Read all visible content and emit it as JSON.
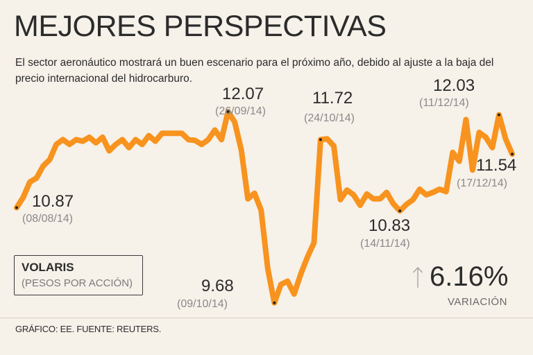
{
  "title": "MEJORES PERSPECTIVAS",
  "subtitle": "El sector aeronáutico mostrará un buen escenario para el próximo año, debido al ajuste a la baja del precio internacional del hidrocarburo.",
  "legend": {
    "name": "VOLARIS",
    "unit": "(PESOS POR ACCIÓN)"
  },
  "change": {
    "value": "6.16%",
    "label": "VARIACIÓN",
    "direction": "up"
  },
  "source": "GRÁFICO: EE. FUENTE: REUTERS.",
  "colors": {
    "line": "#f7931e",
    "text": "#2b2b2b",
    "muted": "#8a8a8a",
    "background": "#f6f1e9"
  },
  "chart_data": {
    "type": "line",
    "title": "MEJORES PERSPECTIVAS",
    "series": [
      {
        "name": "VOLARIS",
        "values": [
          10.87,
          11.0,
          11.19,
          11.24,
          11.39,
          11.47,
          11.66,
          11.72,
          11.66,
          11.72,
          11.7,
          11.75,
          11.68,
          11.75,
          11.58,
          11.66,
          11.72,
          11.62,
          11.72,
          11.66,
          11.77,
          11.7,
          11.8,
          11.8,
          11.8,
          11.8,
          11.72,
          11.71,
          11.66,
          11.72,
          11.84,
          11.72,
          12.07,
          11.94,
          11.59,
          10.98,
          11.05,
          10.84,
          10.11,
          9.68,
          9.91,
          9.95,
          9.79,
          10.04,
          10.25,
          10.43,
          11.72,
          11.73,
          11.64,
          10.97,
          11.09,
          11.03,
          10.9,
          11.04,
          10.98,
          10.98,
          11.06,
          10.92,
          10.83,
          10.91,
          10.97,
          11.1,
          11.03,
          11.06,
          11.1,
          11.07,
          11.56,
          11.45,
          11.97,
          11.34,
          11.81,
          11.75,
          11.62,
          12.03,
          11.73,
          11.54
        ]
      }
    ],
    "annotations": [
      {
        "value": "10.87",
        "date": "(08/08/14)"
      },
      {
        "value": "12.07",
        "date": "(26/09/14)"
      },
      {
        "value": "9.68",
        "date": "(09/10/14)"
      },
      {
        "value": "11.72",
        "date": "(24/10/14)"
      },
      {
        "value": "10.83",
        "date": "(14/11/14)"
      },
      {
        "value": "12.03",
        "date": "(11/12/14)"
      },
      {
        "value": "11.54",
        "date": "(17/12/14)"
      }
    ],
    "ylim": [
      9.6,
      12.2
    ],
    "xlabel": "",
    "ylabel": "",
    "grid": false
  }
}
